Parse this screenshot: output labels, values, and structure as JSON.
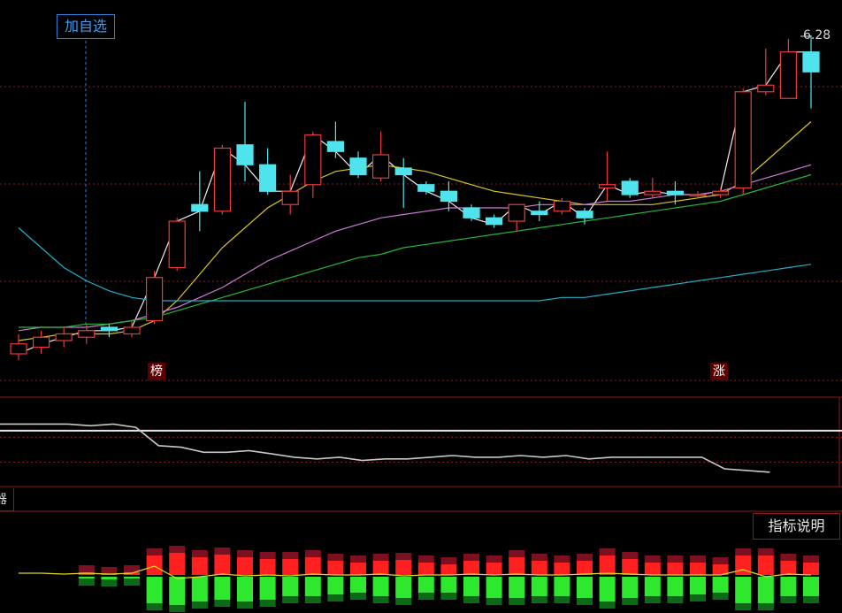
{
  "toolbar": {
    "add_watchlist_label": "加自选"
  },
  "price_chart": {
    "latest_high_label": "6.28",
    "markers": [
      {
        "label": "榜"
      },
      {
        "label": "涨"
      }
    ]
  },
  "indicator_panel": {
    "tab_label": "器",
    "help_button_label": "指标说明"
  },
  "colors": {
    "background": "#000000",
    "grid": "#8a1a1a",
    "up": "#e83a3a",
    "down": "#4fe3ee",
    "ma_white": "#f0f0f0",
    "ma_yellow": "#d8c81e",
    "ma_magenta": "#d07ad8",
    "ma_green": "#22b83a",
    "ma_cyan": "#1eb0c8",
    "vol_up": "#ff2020",
    "vol_down": "#2ee82e"
  },
  "chart_data": {
    "type": "candlestick",
    "candles": [
      {
        "o": 48,
        "c": 51,
        "h": 54,
        "l": 46
      },
      {
        "o": 50,
        "c": 53,
        "h": 55,
        "l": 48
      },
      {
        "o": 52,
        "c": 54,
        "h": 56,
        "l": 50
      },
      {
        "o": 53,
        "c": 55,
        "h": 57,
        "l": 51
      },
      {
        "o": 56,
        "c": 55,
        "h": 57,
        "l": 53
      },
      {
        "o": 54,
        "c": 56,
        "h": 58,
        "l": 53
      },
      {
        "o": 58,
        "c": 71,
        "h": 73,
        "l": 57
      },
      {
        "o": 74,
        "c": 88,
        "h": 89,
        "l": 73
      },
      {
        "o": 93,
        "c": 91,
        "h": 103,
        "l": 85
      },
      {
        "o": 91,
        "c": 110,
        "h": 111,
        "l": 90
      },
      {
        "o": 111,
        "c": 105,
        "h": 124,
        "l": 100
      },
      {
        "o": 105,
        "c": 97,
        "h": 110,
        "l": 96
      },
      {
        "o": 93,
        "c": 97,
        "h": 102,
        "l": 90
      },
      {
        "o": 99,
        "c": 114,
        "h": 115,
        "l": 95
      },
      {
        "o": 112,
        "c": 109,
        "h": 118,
        "l": 107
      },
      {
        "o": 107,
        "c": 102,
        "h": 109,
        "l": 101
      },
      {
        "o": 101,
        "c": 108,
        "h": 115,
        "l": 100
      },
      {
        "o": 104,
        "c": 102,
        "h": 107,
        "l": 92
      },
      {
        "o": 99,
        "c": 97,
        "h": 100,
        "l": 96
      },
      {
        "o": 97,
        "c": 94,
        "h": 100,
        "l": 91
      },
      {
        "o": 92,
        "c": 89,
        "h": 93,
        "l": 88
      },
      {
        "o": 89,
        "c": 87,
        "h": 90,
        "l": 86
      },
      {
        "o": 88,
        "c": 93,
        "h": 93,
        "l": 85
      },
      {
        "o": 91,
        "c": 90,
        "h": 94,
        "l": 88
      },
      {
        "o": 91,
        "c": 94,
        "h": 95,
        "l": 90
      },
      {
        "o": 91,
        "c": 89,
        "h": 92,
        "l": 87
      },
      {
        "o": 98,
        "c": 99,
        "h": 109,
        "l": 94
      },
      {
        "o": 100,
        "c": 96,
        "h": 101,
        "l": 95
      },
      {
        "o": 96,
        "c": 97,
        "h": 101,
        "l": 95
      },
      {
        "o": 97,
        "c": 96,
        "h": 100,
        "l": 93
      },
      {
        "o": 96,
        "c": 96,
        "h": 97,
        "l": 95
      },
      {
        "o": 96,
        "c": 97,
        "h": 98,
        "l": 95
      },
      {
        "o": 98,
        "c": 127,
        "h": 128,
        "l": 96
      },
      {
        "o": 127,
        "c": 129,
        "h": 140,
        "l": 126
      },
      {
        "o": 125,
        "c": 139,
        "h": 143,
        "l": 125
      },
      {
        "o": 139,
        "c": 133,
        "h": 144,
        "l": 122
      }
    ],
    "ma": {
      "white": [
        48,
        51,
        53,
        55,
        55,
        56,
        71,
        88,
        91,
        110,
        105,
        97,
        97,
        114,
        109,
        102,
        108,
        102,
        97,
        94,
        89,
        87,
        93,
        90,
        94,
        89,
        99,
        96,
        97,
        96,
        96,
        97,
        127,
        129,
        139,
        139
      ],
      "yellow": [
        52,
        53,
        54,
        54,
        54,
        55,
        58,
        64,
        72,
        80,
        86,
        92,
        96,
        100,
        103,
        104,
        105,
        104,
        103,
        101,
        99,
        97,
        96,
        95,
        94,
        93,
        93,
        93,
        93,
        94,
        95,
        96,
        100,
        106,
        112,
        118
      ],
      "magenta": [
        55,
        56,
        56,
        56,
        57,
        58,
        60,
        62,
        65,
        68,
        72,
        76,
        79,
        82,
        85,
        87,
        89,
        90,
        91,
        92,
        92,
        92,
        92,
        93,
        93,
        93,
        94,
        94,
        95,
        96,
        96,
        97,
        99,
        101,
        103,
        105
      ],
      "green": [
        56,
        56,
        56,
        57,
        57,
        58,
        59,
        61,
        63,
        65,
        67,
        69,
        71,
        73,
        75,
        77,
        78,
        80,
        81,
        82,
        83,
        84,
        85,
        86,
        87,
        88,
        89,
        90,
        91,
        92,
        93,
        94,
        96,
        98,
        100,
        102
      ],
      "cyan": [
        86,
        80,
        74,
        70,
        67,
        65,
        64,
        64,
        64,
        64,
        64,
        64,
        64,
        64,
        64,
        64,
        64,
        64,
        64,
        64,
        64,
        64,
        64,
        64,
        65,
        65,
        66,
        67,
        68,
        69,
        70,
        71,
        72,
        73,
        74,
        75
      ]
    },
    "ratio": [
      100,
      100,
      100,
      100,
      99,
      100,
      98,
      87,
      86,
      83,
      83,
      84,
      82,
      80,
      79,
      80,
      78,
      79,
      79,
      80,
      81,
      80,
      80,
      81,
      80,
      81,
      79,
      80,
      80,
      80,
      80,
      80,
      73,
      72,
      71,
      null
    ],
    "ratio_ref": 96,
    "volume": [
      {
        "r": 0,
        "g": 0
      },
      {
        "r": 0,
        "g": 0
      },
      {
        "r": 0,
        "g": 0
      },
      {
        "r": 3,
        "g": 2
      },
      {
        "r": 1,
        "g": 3
      },
      {
        "r": 3,
        "g": 2
      },
      {
        "r": 22,
        "g": 30
      },
      {
        "r": 25,
        "g": 32
      },
      {
        "r": 20,
        "g": 28
      },
      {
        "r": 23,
        "g": 26
      },
      {
        "r": 20,
        "g": 28
      },
      {
        "r": 18,
        "g": 26
      },
      {
        "r": 18,
        "g": 22
      },
      {
        "r": 20,
        "g": 22
      },
      {
        "r": 16,
        "g": 20
      },
      {
        "r": 14,
        "g": 18
      },
      {
        "r": 16,
        "g": 22
      },
      {
        "r": 17,
        "g": 24
      },
      {
        "r": 14,
        "g": 18
      },
      {
        "r": 12,
        "g": 18
      },
      {
        "r": 16,
        "g": 22
      },
      {
        "r": 14,
        "g": 24
      },
      {
        "r": 20,
        "g": 24
      },
      {
        "r": 16,
        "g": 22
      },
      {
        "r": 14,
        "g": 22
      },
      {
        "r": 16,
        "g": 24
      },
      {
        "r": 22,
        "g": 28
      },
      {
        "r": 18,
        "g": 24
      },
      {
        "r": 14,
        "g": 22
      },
      {
        "r": 14,
        "g": 22
      },
      {
        "r": 14,
        "g": 20
      },
      {
        "r": 12,
        "g": 18
      },
      {
        "r": 22,
        "g": 30
      },
      {
        "r": 22,
        "g": 30
      },
      {
        "r": 16,
        "g": 22
      },
      {
        "r": 14,
        "g": 22
      }
    ],
    "volume_line": [
      2,
      2,
      1,
      2,
      1,
      2,
      10,
      -4,
      -2,
      1,
      -1,
      0,
      -1,
      1,
      0,
      0,
      1,
      -1,
      0,
      0,
      1,
      0,
      1,
      0,
      0,
      1,
      2,
      1,
      0,
      0,
      0,
      0,
      6,
      -2,
      1,
      0
    ]
  }
}
